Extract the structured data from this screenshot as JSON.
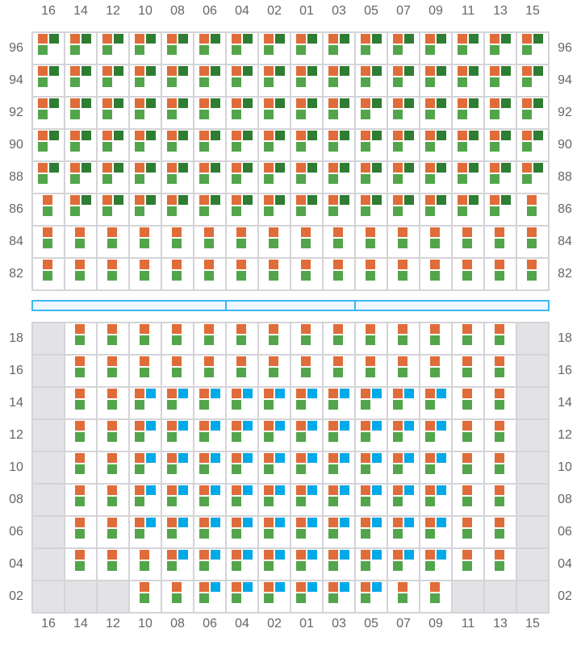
{
  "columns": [
    "16",
    "14",
    "12",
    "10",
    "08",
    "06",
    "04",
    "02",
    "01",
    "03",
    "05",
    "07",
    "09",
    "11",
    "13",
    "15"
  ],
  "legend_codes": {
    "D": "orange+green+dark-green",
    "O": "orange+green",
    "B": "orange+green+blue",
    "X": "unavailable"
  },
  "colors": {
    "orange": "#e06c39",
    "green": "#53a54b",
    "dark_green": "#2e7d32",
    "blue": "#00a9e8",
    "unavailable": "#e3e3e6",
    "divider": "#3bb9f0"
  },
  "top_section": {
    "rows": [
      {
        "label": "96",
        "cells": "DDDDDDDDDDDDDDDD"
      },
      {
        "label": "94",
        "cells": "DDDDDDDDDDDDDDDD"
      },
      {
        "label": "92",
        "cells": "DDDDDDDDDDDDDDDD"
      },
      {
        "label": "90",
        "cells": "DDDDDDDDDDDDDDDD"
      },
      {
        "label": "88",
        "cells": "DDDDDDDDDDDDDDDD"
      },
      {
        "label": "86",
        "cells": "ODDDDDDDDDDDDDDO"
      },
      {
        "label": "84",
        "cells": "OOOOOOOOOOOOOOOO"
      },
      {
        "label": "82",
        "cells": "OOOOOOOOOOOOOOOO"
      }
    ]
  },
  "bottom_section": {
    "rows": [
      {
        "label": "18",
        "cells": "XOOOOOOOOOOOOOOX"
      },
      {
        "label": "16",
        "cells": "XOOOOOOOOOOOOOOX"
      },
      {
        "label": "14",
        "cells": "XOOBBBBBBBBBBOOX"
      },
      {
        "label": "12",
        "cells": "XOOBBBBBBBBBBOOX"
      },
      {
        "label": "10",
        "cells": "XOOBBBBBBBBBBOOX"
      },
      {
        "label": "08",
        "cells": "XOOBBBBBBBBBBOOX"
      },
      {
        "label": "06",
        "cells": "XOOBBBBBBBBBBOOX"
      },
      {
        "label": "04",
        "cells": "XOOOBBBBBBBBBOOX"
      },
      {
        "label": "02",
        "cells": "XXXOOBBBBBBOOXXX"
      }
    ]
  }
}
